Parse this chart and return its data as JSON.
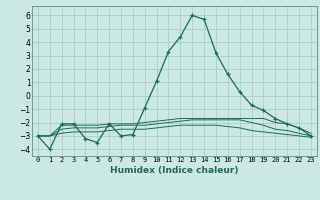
{
  "title": "",
  "xlabel": "Humidex (Indice chaleur)",
  "background_color": "#cce8e4",
  "grid_color": "#aaccca",
  "line_color": "#1a6b5a",
  "xlim": [
    -0.5,
    23.5
  ],
  "ylim": [
    -4.5,
    6.7
  ],
  "yticks": [
    -4,
    -3,
    -2,
    -1,
    0,
    1,
    2,
    3,
    4,
    5,
    6
  ],
  "xtick_labels": [
    "0",
    "1",
    "2",
    "3",
    "4",
    "5",
    "6",
    "7",
    "8",
    "9",
    "10",
    "11",
    "12",
    "13",
    "14",
    "15",
    "16",
    "17",
    "18",
    "19",
    "20",
    "21",
    "22",
    "23"
  ],
  "series_x": [
    0,
    1,
    2,
    3,
    4,
    5,
    6,
    7,
    8,
    9,
    10,
    11,
    12,
    13,
    14,
    15,
    16,
    17,
    18,
    19,
    20,
    21,
    22,
    23
  ],
  "series_y": [
    -3.0,
    -4.0,
    -2.1,
    -2.1,
    -3.2,
    -3.5,
    -2.1,
    -3.0,
    -2.9,
    -0.9,
    1.1,
    3.3,
    4.4,
    6.0,
    5.7,
    3.2,
    1.6,
    0.3,
    -0.7,
    -1.1,
    -1.7,
    -2.1,
    -2.4,
    -3.0
  ],
  "flat1_y": [
    -3.0,
    -3.0,
    -2.2,
    -2.2,
    -2.2,
    -2.2,
    -2.1,
    -2.1,
    -2.1,
    -2.0,
    -1.9,
    -1.8,
    -1.7,
    -1.7,
    -1.7,
    -1.7,
    -1.7,
    -1.7,
    -1.7,
    -1.7,
    -2.0,
    -2.1,
    -2.4,
    -2.8
  ],
  "flat2_y": [
    -3.0,
    -3.0,
    -2.5,
    -2.4,
    -2.4,
    -2.4,
    -2.3,
    -2.2,
    -2.2,
    -2.2,
    -2.1,
    -2.0,
    -1.9,
    -1.8,
    -1.8,
    -1.8,
    -1.8,
    -1.8,
    -2.0,
    -2.2,
    -2.5,
    -2.6,
    -2.8,
    -3.0
  ],
  "flat3_y": [
    -3.0,
    -3.0,
    -2.8,
    -2.7,
    -2.7,
    -2.7,
    -2.6,
    -2.5,
    -2.5,
    -2.5,
    -2.4,
    -2.3,
    -2.2,
    -2.2,
    -2.2,
    -2.2,
    -2.3,
    -2.4,
    -2.6,
    -2.7,
    -2.8,
    -2.9,
    -3.0,
    -3.1
  ]
}
